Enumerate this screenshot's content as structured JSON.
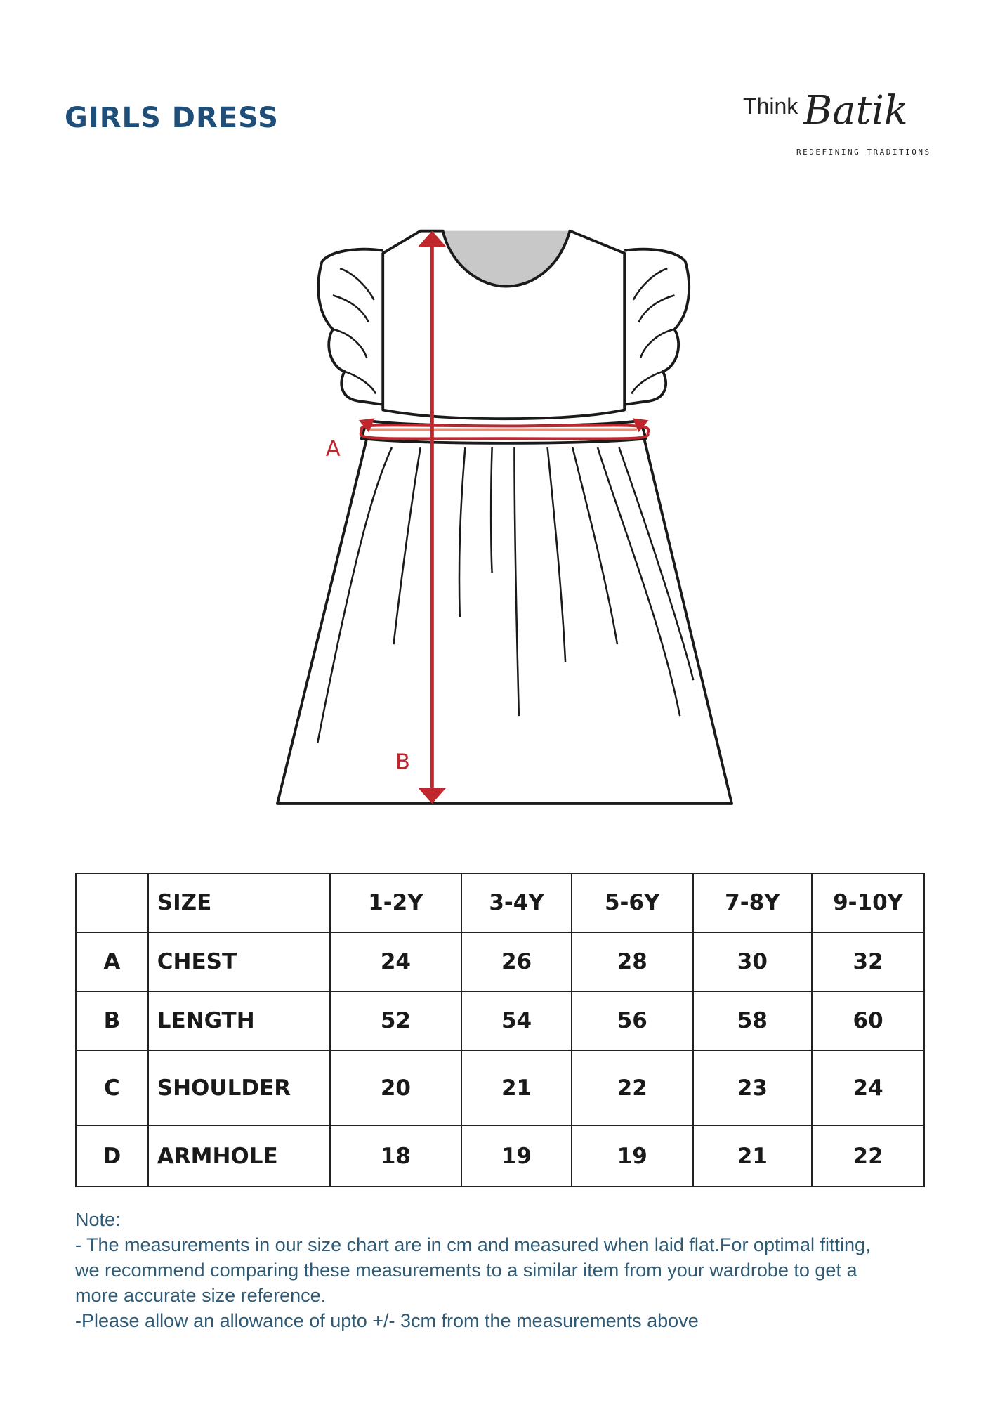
{
  "title": "GIRLS DRESS",
  "logo": {
    "text": "Think Batik",
    "tagline": "REDEFINING TRADITIONS"
  },
  "diagram": {
    "label_a": "A",
    "label_b": "B",
    "measure_color": "#c0272d",
    "neck_fill": "#c8c8c8"
  },
  "table": {
    "header": [
      "",
      "SIZE",
      "1-2Y",
      "3-4Y",
      "5-6Y",
      "7-8Y",
      "9-10Y"
    ],
    "rows": [
      [
        "A",
        "CHEST",
        "24",
        "26",
        "28",
        "30",
        "32"
      ],
      [
        "B",
        "LENGTH",
        "52",
        "54",
        "56",
        "58",
        "60"
      ],
      [
        "C",
        "SHOULDER",
        "20",
        "21",
        "22",
        "23",
        "24"
      ],
      [
        "D",
        "ARMHOLE",
        "18",
        "19",
        "19",
        "21",
        "22"
      ]
    ]
  },
  "note": {
    "heading": "Note:",
    "lines": [
      "- The measurements in our size chart are in cm and measured when laid flat.For optimal fitting,",
      "we recommend comparing these measurements to a similar item from your wardrobe to get a",
      "more accurate size reference.",
      "-Please allow an allowance of upto +/- 3cm from the measurements above"
    ]
  },
  "colors": {
    "title": "#1f4e79",
    "note": "#2e5a75",
    "accent_red": "#c0272d"
  }
}
